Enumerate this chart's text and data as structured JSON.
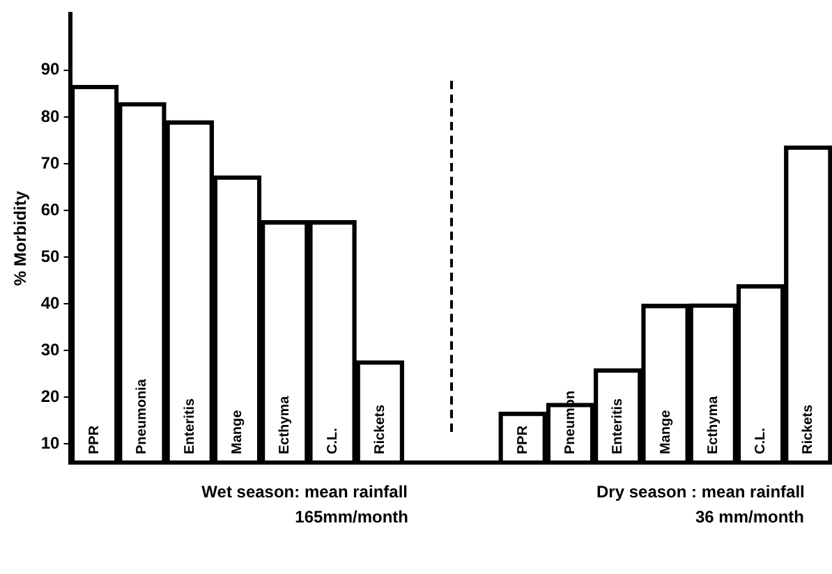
{
  "chart_data": {
    "type": "bar",
    "ylabel": "% Morbidity",
    "categories": [
      "PPR",
      "Pneumonia",
      "Enteritis",
      "Mange",
      "Ecthyma",
      "C.L.",
      "Rickets",
      null,
      null,
      "PPR",
      "Pneumon",
      "Enteritis",
      "Mange",
      "Ecthyma",
      "C.L.",
      "Rickets"
    ],
    "series": [
      {
        "color": "#000000",
        "values": [
          86.8,
          83.1,
          79.2,
          67.4,
          57.8,
          57.8,
          27.8,
          null,
          null,
          16.8,
          18.7,
          26.1,
          39.9,
          40,
          44.1,
          73.8
        ]
      }
    ],
    "ylim": [
      6,
      102
    ],
    "yticks": [
      10,
      20,
      30,
      40,
      50,
      60,
      70,
      80,
      90
    ],
    "annotations": [
      "Wet season: mean rainfall",
      "165mm/month",
      "Dry season : mean rainfall",
      "36 mm/month"
    ],
    "grid": false,
    "legend": false
  }
}
